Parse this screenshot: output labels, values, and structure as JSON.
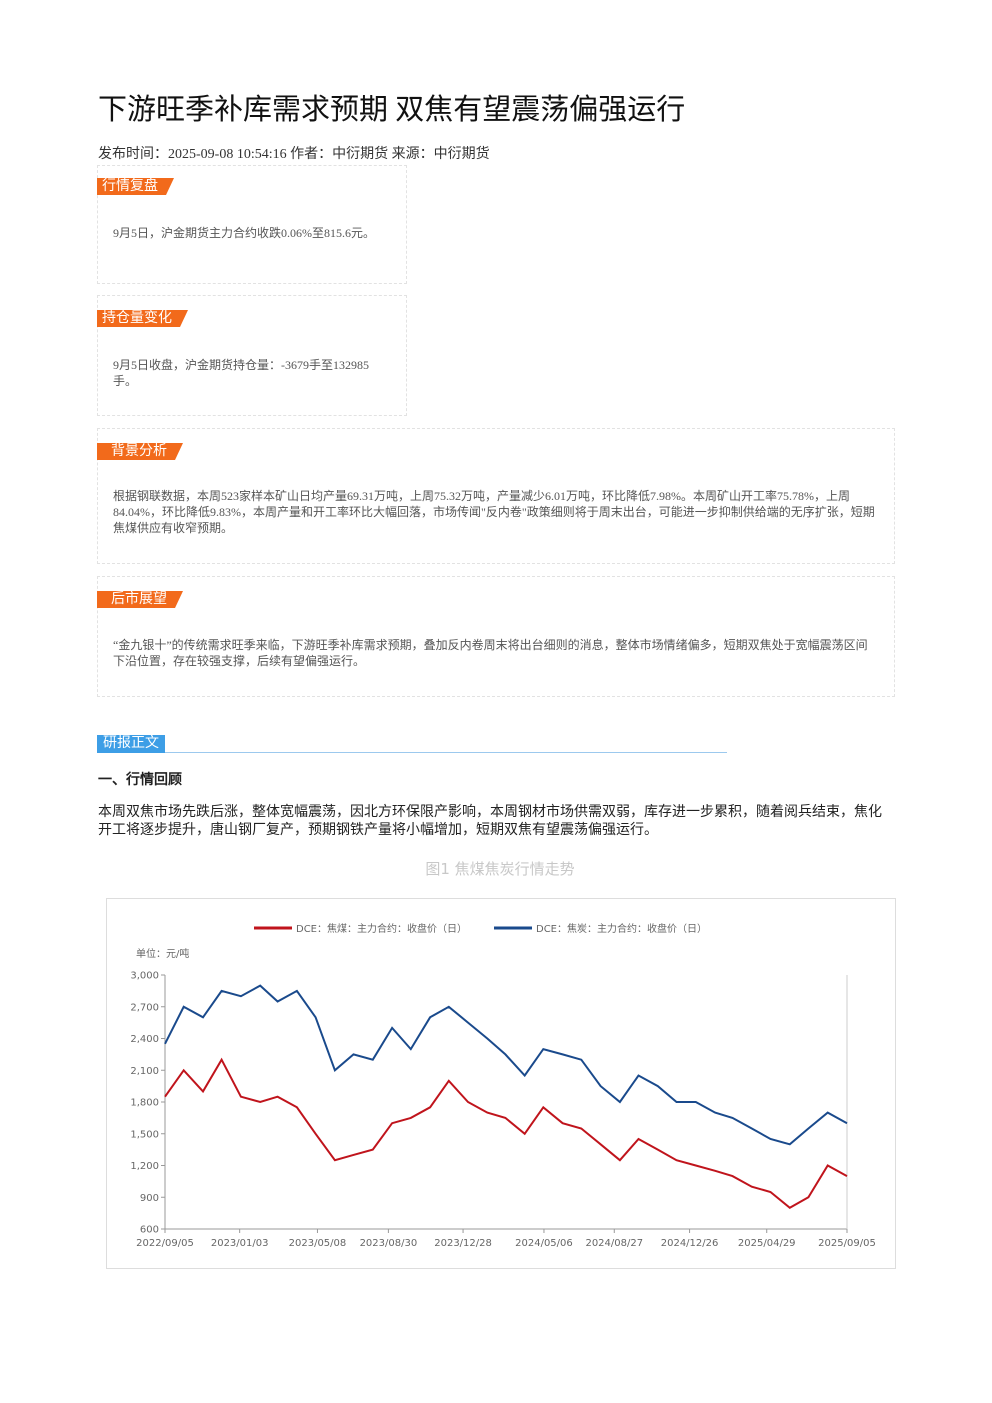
{
  "header": {
    "title": "下游旺季补库需求预期 双焦有望震荡偏强运行",
    "meta": "发布时间：2025-09-08 10:54:16 作者：中衍期货 来源：中衍期货"
  },
  "boxes": [
    {
      "tag": "行情复盘",
      "text": "9月5日，沪金期货主力合约收跌0.06%至815.6元。"
    },
    {
      "tag": "持仓量变化",
      "text": "9月5日收盘，沪金期货持仓量：-3679手至132985手。"
    },
    {
      "tag": "背景分析",
      "text": "根据钢联数据，本周523家样本矿山日均产量69.31万吨，上周75.32万吨，产量减少6.01万吨，环比降低7.98%。本周矿山开工率75.78%，上周84.04%，环比降低9.83%，本周产量和开工率环比大幅回落，市场传闻\"反内卷\"政策细则将于周末出台，可能进一步抑制供给端的无序扩张，短期焦煤供应有收窄预期。"
    },
    {
      "tag": "后市展望",
      "text": "“金九银十”的传统需求旺季来临，下游旺季补库需求预期，叠加反内卷周末将出台细则的消息，整体市场情绪偏多，短期双焦处于宽幅震荡区间下沿位置，存在较强支撑，后续有望偏强运行。"
    }
  ],
  "body": {
    "tag": "研报正文",
    "heading": "一、行情回顾",
    "paragraph": "本周双焦市场先跌后涨，整体宽幅震荡，因北方环保限产影响，本周钢材市场供需双弱，库存进一步累积，随着阅兵结束，焦化开工将逐步提升，唐山钢厂复产，预期钢铁产量将小幅增加，短期双焦有望震荡偏强运行。",
    "figure_title": "图1 焦煤焦炭行情走势"
  },
  "chart_data": {
    "type": "line",
    "unit_label": "单位：元/吨",
    "x": [
      "2022/09/05",
      "2022/10/05",
      "2022/11/05",
      "2022/12/05",
      "2023/01/05",
      "2023/02/05",
      "2023/03/05",
      "2023/04/05",
      "2023/05/05",
      "2023/06/05",
      "2023/07/05",
      "2023/08/05",
      "2023/09/05",
      "2023/10/05",
      "2023/11/05",
      "2023/12/05",
      "2024/01/05",
      "2024/02/05",
      "2024/03/05",
      "2024/04/05",
      "2024/05/05",
      "2024/06/05",
      "2024/07/05",
      "2024/08/05",
      "2024/09/05",
      "2024/10/05",
      "2024/11/05",
      "2024/12/05",
      "2025/01/05",
      "2025/02/05",
      "2025/03/05",
      "2025/04/05",
      "2025/05/05",
      "2025/06/05",
      "2025/07/05",
      "2025/08/05",
      "2025/09/05"
    ],
    "series": [
      {
        "name": "DCE：焦煤：主力合约：收盘价（日）",
        "color": "#c0141c",
        "values": [
          1850,
          2100,
          1900,
          2200,
          1850,
          1800,
          1850,
          1750,
          1500,
          1250,
          1300,
          1350,
          1600,
          1650,
          1750,
          2000,
          1800,
          1700,
          1650,
          1500,
          1750,
          1600,
          1550,
          1400,
          1250,
          1450,
          1350,
          1250,
          1200,
          1150,
          1100,
          1000,
          950,
          800,
          900,
          1200,
          1100
        ]
      },
      {
        "name": "DCE：焦炭：主力合约：收盘价（日）",
        "color": "#1a4a8c",
        "values": [
          2350,
          2700,
          2600,
          2850,
          2800,
          2900,
          2750,
          2850,
          2600,
          2100,
          2250,
          2200,
          2500,
          2300,
          2600,
          2700,
          2550,
          2400,
          2250,
          2050,
          2300,
          2250,
          2200,
          1950,
          1800,
          2050,
          1950,
          1800,
          1800,
          1700,
          1650,
          1550,
          1450,
          1400,
          1550,
          1700,
          1600
        ]
      }
    ],
    "xlim": [
      "2022/09/05",
      "2025/09/05"
    ],
    "xticks": [
      "2022/09/05",
      "2023/01/03",
      "2023/05/08",
      "2023/08/30",
      "2023/12/28",
      "2024/05/06",
      "2024/08/27",
      "2024/12/26",
      "2025/04/29",
      "2025/09/05"
    ],
    "ylim": [
      600,
      3000
    ],
    "yticks": [
      600,
      900,
      {
        "value": 1200,
        "label": "1,200"
      },
      {
        "value": 1500,
        "label": "1,500"
      },
      {
        "value": 1800,
        "label": "1,800"
      },
      {
        "value": 2100,
        "label": "2,100"
      },
      {
        "value": 2400,
        "label": "2,400"
      },
      {
        "value": 2700,
        "label": "2,700"
      },
      {
        "value": 3000,
        "label": "3,000"
      }
    ],
    "grid": false
  }
}
